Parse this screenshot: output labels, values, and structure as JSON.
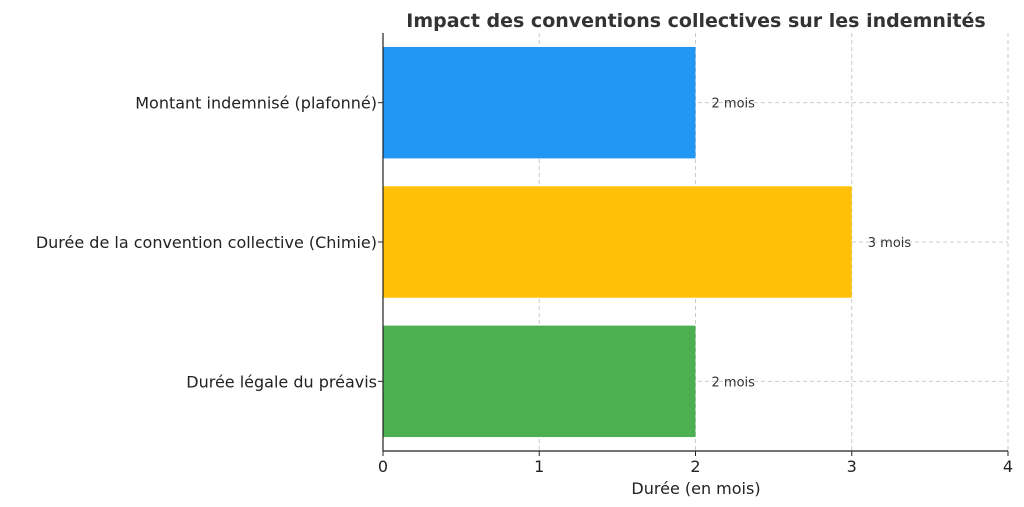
{
  "chart_data": {
    "type": "bar",
    "orientation": "horizontal",
    "title": "Impact des conventions collectives sur les indemnités",
    "xlabel": "Durée (en mois)",
    "ylabel": "",
    "xlim": [
      0,
      4
    ],
    "xticks": [
      "0",
      "1",
      "2",
      "3",
      "4"
    ],
    "grid": true,
    "categories": [
      "Montant indemnisé (plafonné)",
      "Durée de la convention collective (Chimie)",
      "Durée légale du préavis"
    ],
    "values": [
      2,
      3,
      2
    ],
    "value_labels": [
      "2 mois",
      "3 mois",
      "2 mois"
    ],
    "colors": [
      "#2196F3",
      "#FFC107",
      "#4CAF50"
    ]
  }
}
